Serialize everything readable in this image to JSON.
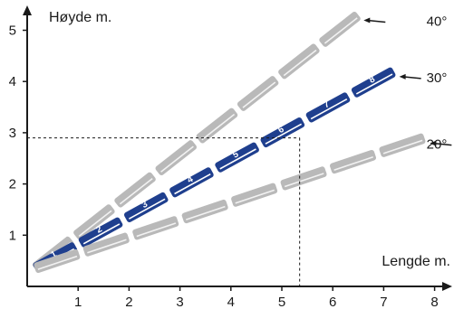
{
  "chart_data": {
    "type": "line",
    "title": "",
    "ylabel": "Høyde m.",
    "xlabel": "Lengde m.",
    "xlim": [
      0,
      8
    ],
    "ylim": [
      0,
      5
    ],
    "x_ticks": [
      "1",
      "2",
      "3",
      "4",
      "5",
      "6",
      "7",
      "8"
    ],
    "y_ticks": [
      "1",
      "2",
      "3",
      "4",
      "5"
    ],
    "grid": false,
    "series": [
      {
        "name": "40°",
        "angle_deg": 40,
        "style": "gray",
        "segments": [
          {
            "label": ""
          },
          {
            "label": ""
          },
          {
            "label": ""
          },
          {
            "label": ""
          },
          {
            "label": ""
          },
          {
            "label": ""
          },
          {
            "label": ""
          },
          {
            "label": ""
          }
        ],
        "end": {
          "x": 6.5,
          "y": 5.3
        }
      },
      {
        "name": "30°",
        "angle_deg": 30,
        "style": "blue",
        "segments": [
          {
            "label": "1"
          },
          {
            "label": "2"
          },
          {
            "label": "3"
          },
          {
            "label": "4"
          },
          {
            "label": "5"
          },
          {
            "label": "6"
          },
          {
            "label": "7"
          },
          {
            "label": "8"
          }
        ],
        "end": {
          "x": 7.2,
          "y": 4.2
        }
      },
      {
        "name": "20°",
        "angle_deg": 20,
        "style": "gray",
        "segments": [
          {
            "label": ""
          },
          {
            "label": ""
          },
          {
            "label": ""
          },
          {
            "label": ""
          },
          {
            "label": ""
          },
          {
            "label": ""
          },
          {
            "label": ""
          },
          {
            "label": ""
          }
        ],
        "end": {
          "x": 7.8,
          "y": 2.9
        }
      }
    ],
    "guide_point": {
      "x": 5.35,
      "y": 2.9
    },
    "colors": {
      "blue": "#1f3f8e",
      "blue_stripe": "#ffffff",
      "gray": "#b9b9b9",
      "gray_stripe": "#f2f2f2",
      "axis": "#1a1a1a"
    }
  }
}
